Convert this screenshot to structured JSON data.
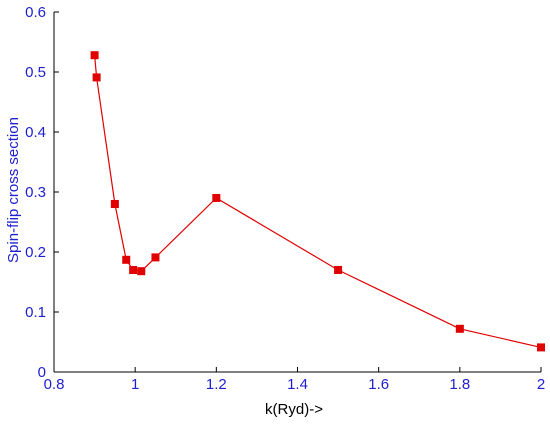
{
  "chart_data": {
    "type": "line",
    "title": "",
    "xlabel": "k(Ryd)->",
    "ylabel": "Spin-flip cross section",
    "xlim": [
      0.8,
      2.0
    ],
    "ylim": [
      0,
      0.6
    ],
    "x_ticks": [
      0.8,
      1,
      1.2,
      1.4,
      1.6,
      1.8,
      2
    ],
    "x_tick_labels": [
      "0.8",
      "1",
      "1.2",
      "1.4",
      "1.6",
      "1.8",
      "2"
    ],
    "y_ticks": [
      0,
      0.1,
      0.2,
      0.3,
      0.4,
      0.5,
      0.6
    ],
    "y_tick_labels": [
      "0",
      "0.1",
      "0.2",
      "0.3",
      "0.4",
      "0.5",
      "0.6"
    ],
    "grid": false,
    "legend": "none",
    "series": [
      {
        "color": "#e00000",
        "marker": "square",
        "x": [
          0.9,
          0.905,
          0.95,
          0.978,
          0.995,
          1.015,
          1.05,
          1.2,
          1.5,
          1.8,
          2.0
        ],
        "y": [
          0.528,
          0.491,
          0.28,
          0.187,
          0.17,
          0.168,
          0.191,
          0.29,
          0.17,
          0.072,
          0.041
        ]
      }
    ],
    "colors": {
      "axis": "#000000",
      "tick_labels": "#2020d0",
      "ylabel": "#2020d0",
      "xlabel": "#000000"
    }
  }
}
